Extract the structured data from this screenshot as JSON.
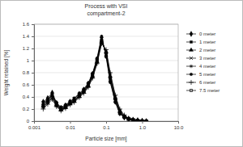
{
  "chart_data": {
    "type": "line",
    "title": "Process with VSI",
    "subtitle": "compartment-2",
    "x_label": "Particle size [mm]",
    "y_label": "Weight retained [%]",
    "log": "x",
    "grid": true,
    "legend": "right",
    "xlim": [
      0.001,
      10
    ],
    "xticks": [
      0.001,
      0.01,
      0.1,
      {
        "value": 1,
        "label": "1.0"
      },
      {
        "value": 10,
        "label": "10.0"
      }
    ],
    "ylim": [
      0,
      1.6
    ],
    "yticks": [
      0,
      0.2,
      0.4,
      0.6,
      0.8,
      1,
      1.2,
      1.4,
      1.6
    ],
    "x": [
      0.0018,
      0.0024,
      0.0032,
      0.0042,
      0.0056,
      0.0075,
      0.01,
      0.013,
      0.018,
      0.024,
      0.032,
      0.042,
      0.056,
      0.075,
      0.1,
      0.13,
      0.18,
      0.24,
      0.32,
      0.42,
      0.56,
      0.75,
      1.0,
      1.3
    ],
    "series": [
      {
        "name": "0 meter",
        "color": "#000000",
        "marker": "diamond",
        "line_style": "solid",
        "values": [
          0.32,
          0.38,
          0.47,
          0.3,
          0.22,
          0.26,
          0.32,
          0.36,
          0.45,
          0.52,
          0.62,
          0.78,
          1.02,
          1.38,
          1.08,
          0.66,
          0.32,
          0.13,
          0.06,
          0.03,
          0.02,
          0.01,
          0.0,
          0.0
        ]
      },
      {
        "name": "1 meter",
        "color": "#000000",
        "marker": "square",
        "line_style": "solid",
        "values": [
          0.28,
          0.35,
          0.44,
          0.28,
          0.2,
          0.24,
          0.3,
          0.34,
          0.42,
          0.5,
          0.6,
          0.76,
          1.0,
          1.34,
          1.12,
          0.7,
          0.36,
          0.15,
          0.07,
          0.04,
          0.02,
          0.01,
          0.0,
          0.0
        ]
      },
      {
        "name": "2 meter",
        "color": "#000000",
        "marker": "triangle",
        "line_style": "solid",
        "values": [
          0.25,
          0.33,
          0.42,
          0.27,
          0.19,
          0.23,
          0.29,
          0.33,
          0.41,
          0.48,
          0.58,
          0.74,
          0.98,
          1.32,
          1.14,
          0.74,
          0.38,
          0.16,
          0.08,
          0.04,
          0.02,
          0.01,
          0.01,
          0.0
        ]
      },
      {
        "name": "3 meter",
        "color": "#000000",
        "marker": "x",
        "line_style": "solid",
        "values": [
          0.3,
          0.36,
          0.43,
          0.29,
          0.21,
          0.25,
          0.31,
          0.37,
          0.44,
          0.51,
          0.61,
          0.77,
          1.01,
          1.36,
          1.1,
          0.68,
          0.34,
          0.14,
          0.07,
          0.03,
          0.02,
          0.01,
          0.0,
          0.0
        ]
      },
      {
        "name": "4 meter",
        "color": "#000000",
        "marker": "asterisk",
        "line_style": "solid",
        "values": [
          0.22,
          0.3,
          0.38,
          0.25,
          0.18,
          0.22,
          0.28,
          0.32,
          0.4,
          0.47,
          0.57,
          0.72,
          0.96,
          1.3,
          1.16,
          0.78,
          0.41,
          0.18,
          0.09,
          0.05,
          0.03,
          0.01,
          0.01,
          0.0
        ]
      },
      {
        "name": "5 meter",
        "color": "#000000",
        "marker": "circle",
        "line_style": "solid",
        "values": [
          0.27,
          0.34,
          0.45,
          0.31,
          0.23,
          0.27,
          0.33,
          0.38,
          0.46,
          0.53,
          0.63,
          0.79,
          1.04,
          1.4,
          1.06,
          0.64,
          0.31,
          0.12,
          0.06,
          0.03,
          0.01,
          0.01,
          0.0,
          0.0
        ]
      },
      {
        "name": "6 meter",
        "color": "#000000",
        "marker": "plus",
        "line_style": "solid",
        "values": [
          0.2,
          0.28,
          0.36,
          0.24,
          0.17,
          0.21,
          0.27,
          0.31,
          0.39,
          0.46,
          0.56,
          0.71,
          0.95,
          1.28,
          1.18,
          0.8,
          0.43,
          0.2,
          0.1,
          0.05,
          0.03,
          0.02,
          0.01,
          0.0
        ]
      },
      {
        "name": "7.5 meter",
        "color": "#000000",
        "marker": "square-open",
        "line_style": "solid",
        "values": [
          0.24,
          0.31,
          0.4,
          0.26,
          0.19,
          0.23,
          0.29,
          0.34,
          0.42,
          0.49,
          0.59,
          0.75,
          0.99,
          1.33,
          1.13,
          0.72,
          0.37,
          0.16,
          0.08,
          0.04,
          0.02,
          0.01,
          0.0,
          0.0
        ]
      }
    ]
  }
}
